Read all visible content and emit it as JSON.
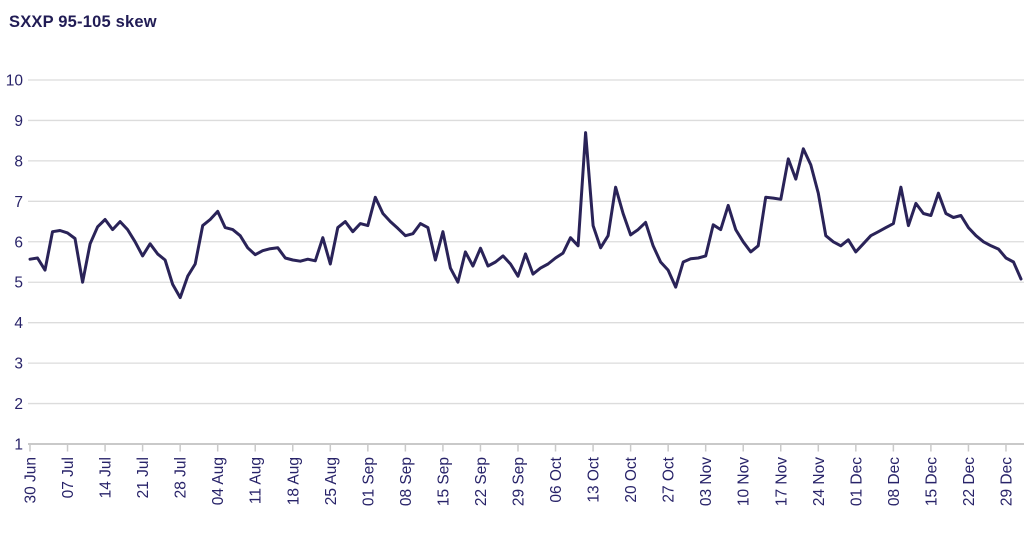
{
  "header": {
    "title": "SXXP 95-105 skew"
  },
  "chart_data": {
    "type": "line",
    "title": "SXXP 95-105 skew",
    "xlabel": "",
    "ylabel": "",
    "ylim": [
      1,
      10
    ],
    "y_ticks": [
      1,
      2,
      3,
      4,
      5,
      6,
      7,
      8,
      9,
      10
    ],
    "grid": true,
    "legend": "none",
    "x_tick_labels": [
      "30 Jun",
      "07 Jul",
      "14 Jul",
      "21 Jul",
      "28 Jul",
      "04 Aug",
      "11 Aug",
      "18 Aug",
      "25 Aug",
      "01 Sep",
      "08 Sep",
      "15 Sep",
      "22 Sep",
      "29 Sep",
      "06 Oct",
      "13 Oct",
      "20 Oct",
      "27 Oct",
      "03 Nov",
      "10 Nov",
      "17 Nov",
      "24 Nov",
      "01 Dec",
      "08 Dec",
      "15 Dec",
      "22 Dec",
      "29 Dec"
    ],
    "points_per_tick": 5,
    "series": [
      {
        "name": "SXXP 95-105 skew",
        "values": [
          5.57,
          5.6,
          5.3,
          6.25,
          6.28,
          6.22,
          6.08,
          5.0,
          5.95,
          6.37,
          6.55,
          6.3,
          6.5,
          6.3,
          6.0,
          5.65,
          5.95,
          5.7,
          5.55,
          4.95,
          4.62,
          5.15,
          5.45,
          6.4,
          6.55,
          6.75,
          6.35,
          6.3,
          6.15,
          5.85,
          5.68,
          5.78,
          5.83,
          5.85,
          5.6,
          5.55,
          5.52,
          5.57,
          5.53,
          6.1,
          5.45,
          6.35,
          6.5,
          6.25,
          6.45,
          6.4,
          7.1,
          6.7,
          6.5,
          6.33,
          6.15,
          6.2,
          6.45,
          6.35,
          5.55,
          6.25,
          5.35,
          5.0,
          5.75,
          5.4,
          5.84,
          5.4,
          5.5,
          5.65,
          5.45,
          5.15,
          5.7,
          5.2,
          5.35,
          5.45,
          5.6,
          5.72,
          6.1,
          5.9,
          8.7,
          6.4,
          5.85,
          6.15,
          7.35,
          6.7,
          6.17,
          6.3,
          6.48,
          5.9,
          5.5,
          5.3,
          4.88,
          5.5,
          5.58,
          5.6,
          5.65,
          6.42,
          6.3,
          6.9,
          6.3,
          6.0,
          5.75,
          5.9,
          7.1,
          7.08,
          7.05,
          8.05,
          7.55,
          8.3,
          7.9,
          7.2,
          6.15,
          6.0,
          5.9,
          6.05,
          5.75,
          5.95,
          6.15,
          6.25,
          6.35,
          6.45,
          7.35,
          6.4,
          6.95,
          6.7,
          6.65,
          7.2,
          6.7,
          6.6,
          6.65,
          6.35,
          6.15,
          6.0,
          5.9,
          5.82,
          5.6,
          5.5,
          5.08
        ]
      }
    ],
    "colors": {
      "line": "#2a2358",
      "text": "#282369",
      "grid": "#dcdcdc",
      "axis": "#c9c9c9"
    }
  }
}
